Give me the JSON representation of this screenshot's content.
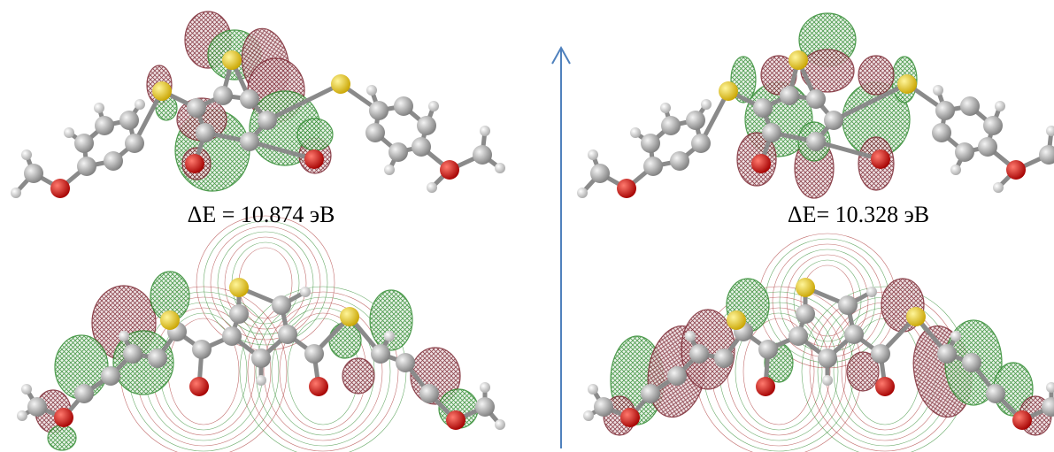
{
  "labels": {
    "left": "ΔE = 10.874 эВ",
    "right": "ΔE= 10.328 эВ"
  }
}
